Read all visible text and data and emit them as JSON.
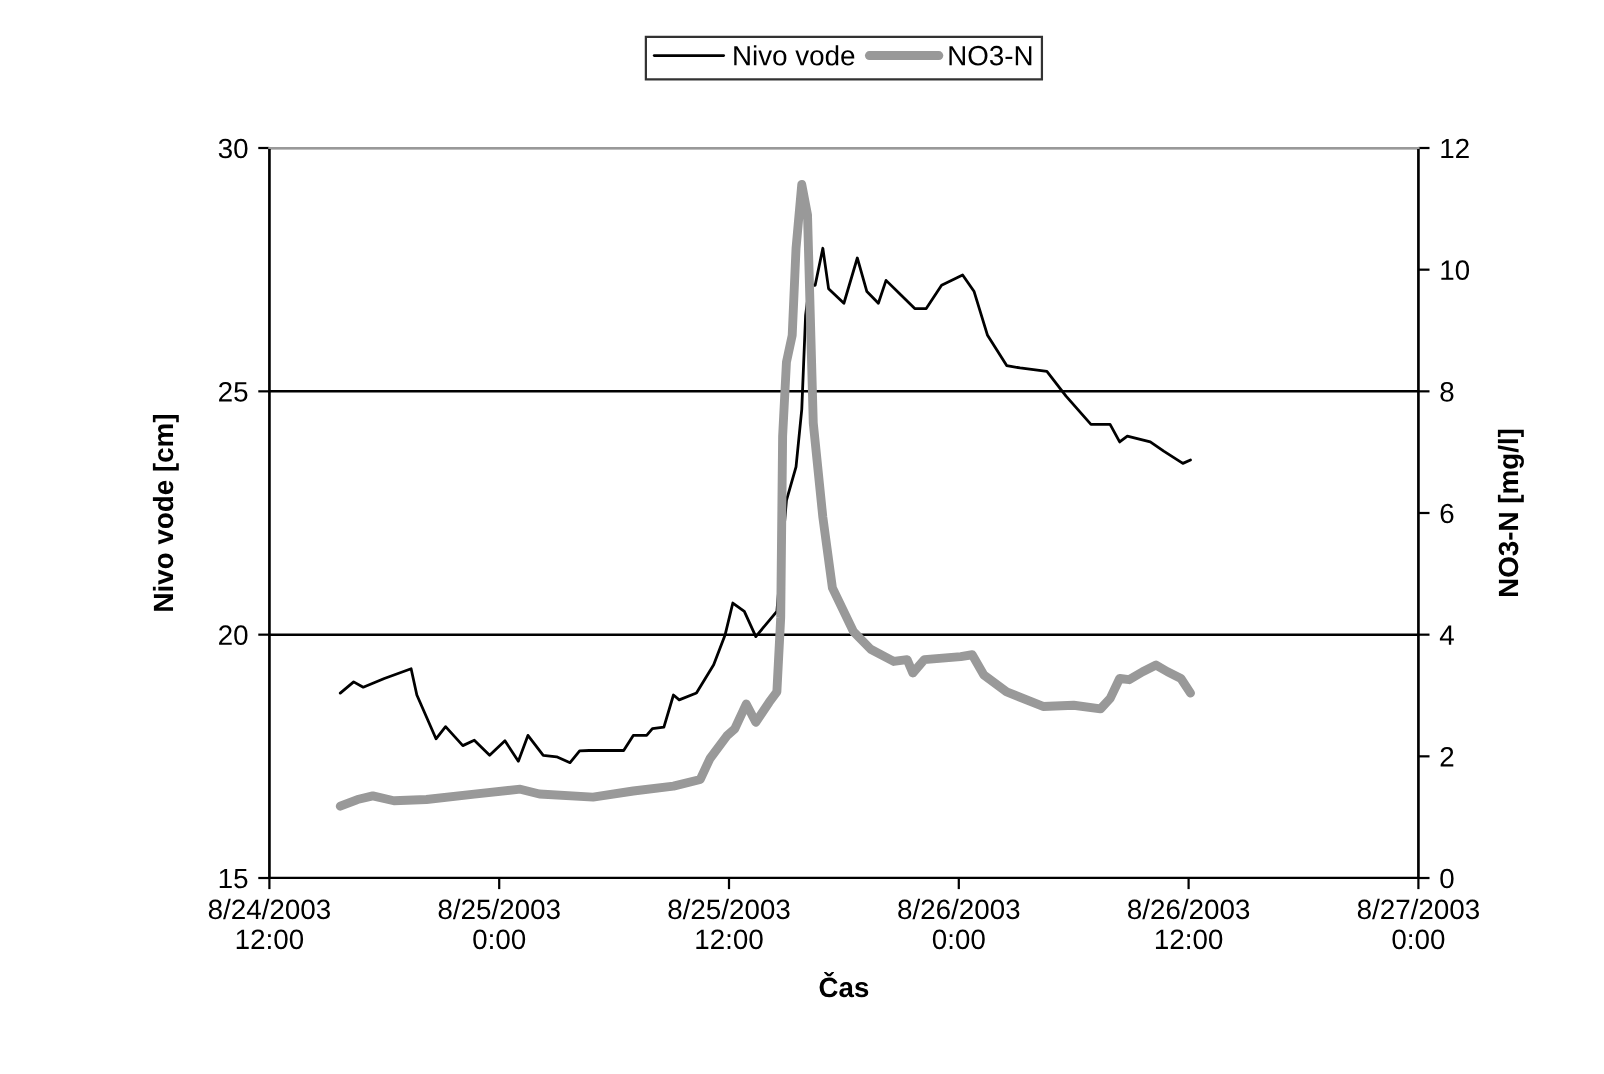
{
  "chart_data": {
    "type": "line",
    "xlabel": "Čas",
    "ylabel": "Nivo vode [cm]",
    "y2label": "NO3-N [mg/l]",
    "xlim": [
      "2003-08-24T12:00",
      "2003-08-27T00:00"
    ],
    "xticks": [
      {
        "value": "2003-08-24T12:00",
        "label": "8/24/2003\n12:00"
      },
      {
        "value": "2003-08-25T00:00",
        "label": "8/25/2003\n0:00"
      },
      {
        "value": "2003-08-25T12:00",
        "label": "8/25/2003\n12:00"
      },
      {
        "value": "2003-08-26T00:00",
        "label": "8/26/2003\n0:00"
      },
      {
        "value": "2003-08-26T12:00",
        "label": "8/26/2003\n12:00"
      },
      {
        "value": "2003-08-27T00:00",
        "label": "8/27/2003\n0:00"
      }
    ],
    "ylim": [
      15,
      30
    ],
    "yticks": [
      15,
      20,
      25,
      30
    ],
    "y2lim": [
      0,
      12
    ],
    "y2ticks": [
      0,
      2,
      4,
      6,
      8,
      10,
      12
    ],
    "grid": "y",
    "legend": "top",
    "marker": "none",
    "series": [
      {
        "name": "Nivo vode",
        "color": "#000000",
        "x": [
          "2003-08-24T15:42",
          "2003-08-24T16:24",
          "2003-08-24T16:54",
          "2003-08-24T18:00",
          "2003-08-24T19:24",
          "2003-08-24T19:42",
          "2003-08-24T20:42",
          "2003-08-24T21:12",
          "2003-08-24T22:06",
          "2003-08-24T22:42",
          "2003-08-24T23:30",
          "2003-08-25T00:18",
          "2003-08-25T01:00",
          "2003-08-25T01:30",
          "2003-08-25T02:18",
          "2003-08-25T03:00",
          "2003-08-25T03:42",
          "2003-08-25T04:12",
          "2003-08-25T04:42",
          "2003-08-25T06:30",
          "2003-08-25T07:00",
          "2003-08-25T07:42",
          "2003-08-25T08:00",
          "2003-08-25T08:36",
          "2003-08-25T09:06",
          "2003-08-25T09:24",
          "2003-08-25T10:18",
          "2003-08-25T11:12",
          "2003-08-25T11:48",
          "2003-08-25T12:12",
          "2003-08-25T12:48",
          "2003-08-25T13:24",
          "2003-08-25T14:30",
          "2003-08-25T15:00",
          "2003-08-25T15:30",
          "2003-08-25T15:48",
          "2003-08-25T16:00",
          "2003-08-25T16:12",
          "2003-08-25T16:30",
          "2003-08-25T16:54",
          "2003-08-25T17:12",
          "2003-08-25T18:00",
          "2003-08-25T18:42",
          "2003-08-25T19:12",
          "2003-08-25T19:48",
          "2003-08-25T20:12",
          "2003-08-25T20:54",
          "2003-08-25T21:42",
          "2003-08-25T22:18",
          "2003-08-25T23:06",
          "2003-08-26T00:12",
          "2003-08-26T00:48",
          "2003-08-26T01:30",
          "2003-08-26T02:30",
          "2003-08-26T03:12",
          "2003-08-26T04:36",
          "2003-08-26T05:36",
          "2003-08-26T06:54",
          "2003-08-26T07:54",
          "2003-08-26T08:24",
          "2003-08-26T08:48",
          "2003-08-26T10:00",
          "2003-08-26T10:42",
          "2003-08-26T11:42",
          "2003-08-26T12:06"
        ],
        "values": [
          18.8,
          19.03,
          18.92,
          19.1,
          19.3,
          18.76,
          17.86,
          18.11,
          17.72,
          17.83,
          17.52,
          17.82,
          17.4,
          17.93,
          17.52,
          17.49,
          17.37,
          17.61,
          17.62,
          17.62,
          17.93,
          17.93,
          18.07,
          18.1,
          18.76,
          18.66,
          18.8,
          19.38,
          20.0,
          20.65,
          20.48,
          19.96,
          20.48,
          22.76,
          23.45,
          24.63,
          26.56,
          27.18,
          27.18,
          27.94,
          27.11,
          26.81,
          27.74,
          27.05,
          26.81,
          27.28,
          27.01,
          26.7,
          26.7,
          27.18,
          27.39,
          27.05,
          26.15,
          25.53,
          25.48,
          25.41,
          24.9,
          24.32,
          24.32,
          23.96,
          24.08,
          23.96,
          23.77,
          23.52,
          23.59
        ]
      },
      {
        "name": "NO3-N",
        "color": "#999999",
        "axis": "y2",
        "x": [
          "2003-08-24T15:42",
          "2003-08-24T16:36",
          "2003-08-24T17:24",
          "2003-08-24T18:30",
          "2003-08-24T20:12",
          "2003-08-24T22:42",
          "2003-08-25T01:06",
          "2003-08-25T02:06",
          "2003-08-25T04:54",
          "2003-08-25T07:00",
          "2003-08-25T09:06",
          "2003-08-25T10:30",
          "2003-08-25T11:00",
          "2003-08-25T11:54",
          "2003-08-25T12:18",
          "2003-08-25T12:54",
          "2003-08-25T13:24",
          "2003-08-25T14:06",
          "2003-08-25T14:30",
          "2003-08-25T14:42",
          "2003-08-25T14:48",
          "2003-08-25T15:00",
          "2003-08-25T15:18",
          "2003-08-25T15:30",
          "2003-08-25T15:48",
          "2003-08-25T16:06",
          "2003-08-25T16:24",
          "2003-08-25T16:54",
          "2003-08-25T17:24",
          "2003-08-25T18:30",
          "2003-08-25T19:24",
          "2003-08-25T20:36",
          "2003-08-25T21:18",
          "2003-08-25T21:36",
          "2003-08-25T22:12",
          "2003-08-26T00:06",
          "2003-08-26T00:42",
          "2003-08-26T01:18",
          "2003-08-26T02:30",
          "2003-08-26T04:24",
          "2003-08-26T06:00",
          "2003-08-26T07:24",
          "2003-08-26T07:54",
          "2003-08-26T08:24",
          "2003-08-26T08:54",
          "2003-08-26T09:36",
          "2003-08-26T10:18",
          "2003-08-26T10:54",
          "2003-08-26T11:36",
          "2003-08-26T12:06"
        ],
        "values": [
          1.18,
          1.29,
          1.35,
          1.27,
          1.29,
          1.38,
          1.46,
          1.38,
          1.33,
          1.43,
          1.51,
          1.62,
          1.96,
          2.34,
          2.45,
          2.86,
          2.56,
          2.89,
          3.06,
          4.28,
          7.26,
          8.48,
          8.92,
          10.35,
          11.4,
          10.9,
          7.48,
          5.93,
          4.77,
          4.05,
          3.76,
          3.56,
          3.59,
          3.37,
          3.59,
          3.64,
          3.67,
          3.34,
          3.06,
          2.82,
          2.84,
          2.78,
          2.95,
          3.28,
          3.26,
          3.39,
          3.5,
          3.39,
          3.28,
          3.04
        ]
      }
    ]
  }
}
